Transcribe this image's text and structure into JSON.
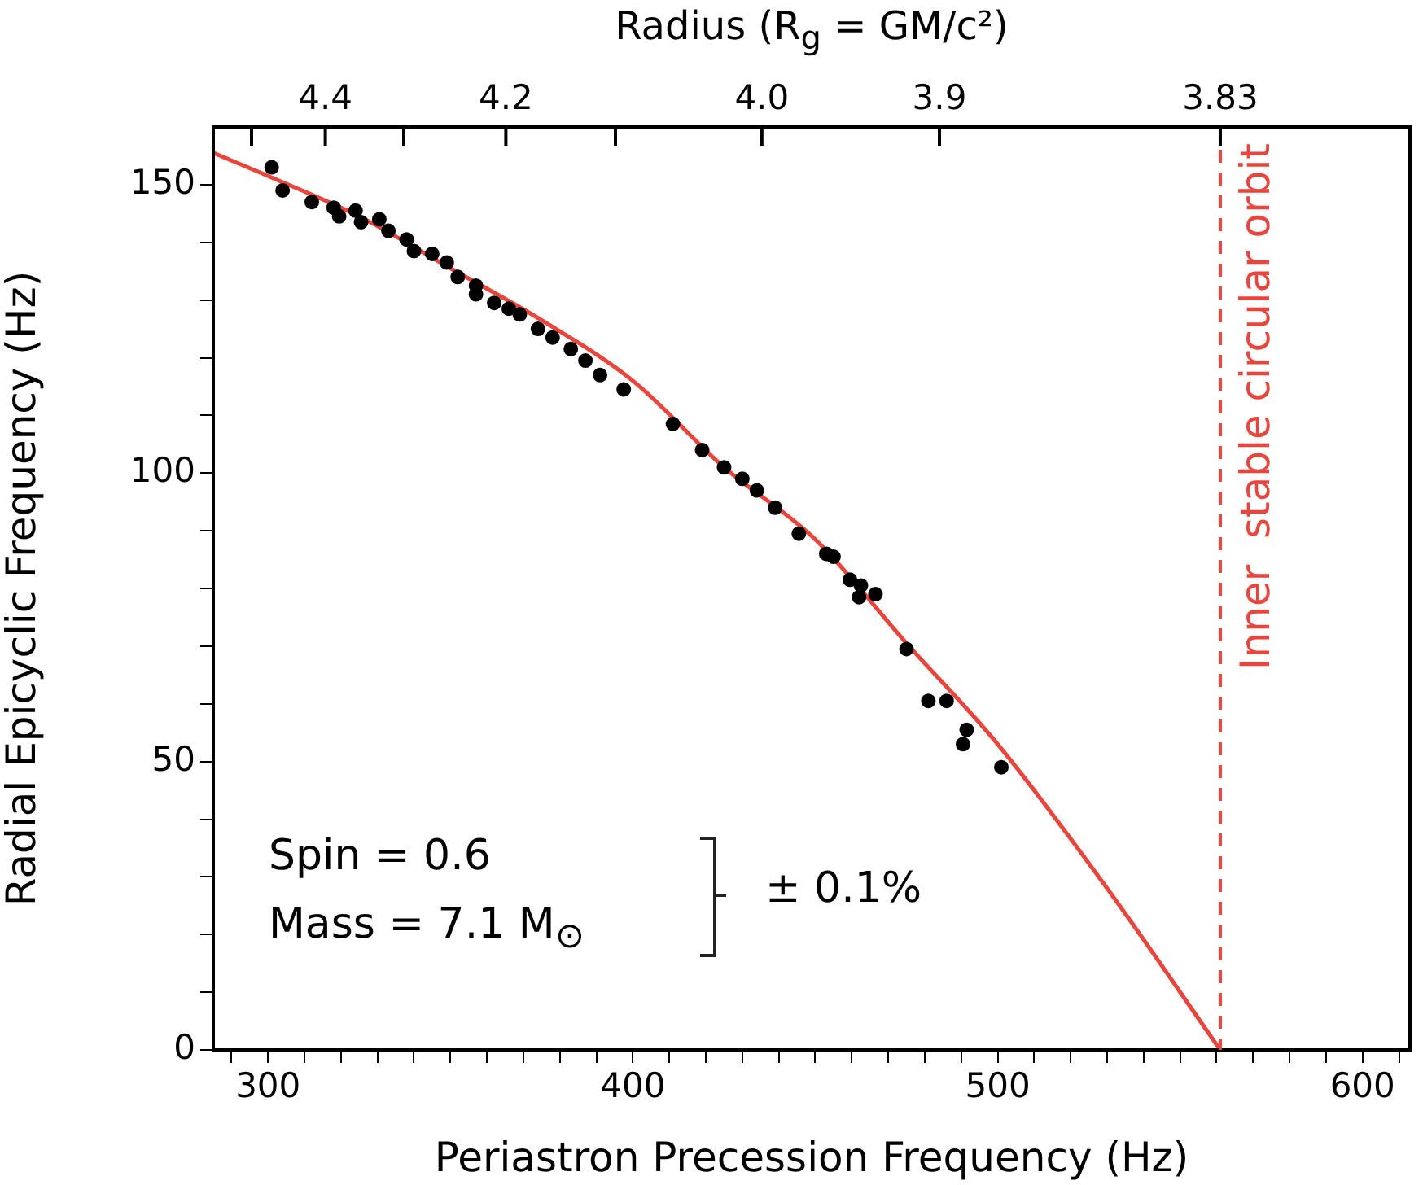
{
  "chart_data": {
    "type": "scatter",
    "xlabel": "Periastron Precession Frequency (Hz)",
    "ylabel": "Radial Epicyclic Frequency (Hz)",
    "x2label": "Radius (R$_{g}$ = GM/c²)",
    "xlim": [
      285,
      613
    ],
    "ylim": [
      0,
      160
    ],
    "xticks": [
      {
        "value": 290,
        "label": null
      },
      300,
      {
        "value": 310,
        "label": null
      },
      {
        "value": 320,
        "label": null
      },
      {
        "value": 330,
        "label": null
      },
      {
        "value": 340,
        "label": null
      },
      {
        "value": 350,
        "label": null
      },
      {
        "value": 360,
        "label": null
      },
      {
        "value": 370,
        "label": null
      },
      {
        "value": 380,
        "label": null
      },
      {
        "value": 390,
        "label": null
      },
      400,
      {
        "value": 410,
        "label": null
      },
      {
        "value": 420,
        "label": null
      },
      {
        "value": 430,
        "label": null
      },
      {
        "value": 440,
        "label": null
      },
      {
        "value": 450,
        "label": null
      },
      {
        "value": 460,
        "label": null
      },
      {
        "value": 470,
        "label": null
      },
      {
        "value": 480,
        "label": null
      },
      {
        "value": 490,
        "label": null
      },
      500,
      {
        "value": 510,
        "label": null
      },
      {
        "value": 520,
        "label": null
      },
      {
        "value": 530,
        "label": null
      },
      {
        "value": 540,
        "label": null
      },
      {
        "value": 550,
        "label": null
      },
      {
        "value": 560,
        "label": null
      },
      {
        "value": 570,
        "label": null
      },
      {
        "value": 580,
        "label": null
      },
      {
        "value": 590,
        "label": null
      },
      600,
      {
        "value": 610,
        "label": null
      }
    ],
    "yticks": [
      0,
      {
        "value": 10,
        "label": null
      },
      {
        "value": 20,
        "label": null
      },
      {
        "value": 30,
        "label": null
      },
      {
        "value": 40,
        "label": null
      },
      50,
      {
        "value": 60,
        "label": null
      },
      {
        "value": 70,
        "label": null
      },
      {
        "value": 80,
        "label": null
      },
      {
        "value": 90,
        "label": null
      },
      100,
      {
        "value": 110,
        "label": null
      },
      {
        "value": 120,
        "label": null
      },
      {
        "value": 130,
        "label": null
      },
      {
        "value": 140,
        "label": null
      },
      150
    ],
    "series": [
      {
        "type": "scatter",
        "color": "#000000",
        "marker": "circle",
        "x": [
          301,
          304,
          312,
          318,
          319.5,
          324,
          325.5,
          330.5,
          333,
          338,
          340,
          345,
          349,
          352,
          357,
          357,
          362,
          366,
          369,
          374,
          378,
          383,
          387,
          391,
          397.5,
          411,
          419,
          425,
          430,
          434,
          439,
          445.5,
          453,
          455,
          459.5,
          462.5,
          462,
          466.5,
          475,
          481,
          486,
          491.5,
          490.5,
          501
        ],
        "values": [
          153,
          149,
          147,
          146,
          144.5,
          145.5,
          143.5,
          144,
          142,
          140.5,
          138.5,
          138,
          136.5,
          134,
          132.5,
          131,
          129.5,
          128.5,
          127.5,
          125,
          123.5,
          121.5,
          119.5,
          117,
          114.5,
          108.5,
          104,
          101,
          99,
          97,
          94,
          89.5,
          86,
          85.5,
          81.5,
          80.5,
          78.5,
          79,
          69.5,
          60.5,
          60.5,
          55.5,
          53,
          49
        ]
      },
      {
        "type": "line",
        "color": "#e8453c",
        "marker": "none",
        "line_style": "solid",
        "x": [
          285,
          300,
          325,
          350,
          375,
          400,
          425,
          450,
          475,
          500,
          530,
          561
        ],
        "values": [
          155.5,
          151.5,
          144.5,
          135.5,
          126.5,
          116,
          101,
          88.5,
          70.5,
          53,
          28,
          0
        ]
      }
    ],
    "ref_lines": [
      {
        "axis": "x",
        "value": 561,
        "label": "Inner  stable circular orbit",
        "color": "#e8453c",
        "line_style": "dashed"
      }
    ],
    "annotations": [
      "Spin = 0.6",
      "Mass = 7.1 M$_{⊙}$",
      "± 0.1%",
      "4.4",
      "4.2",
      "4.0",
      "3.9",
      {
        "text": "3.83",
        "x": 561,
        "y": 160
      }
    ],
    "grid": false,
    "legend": false
  }
}
